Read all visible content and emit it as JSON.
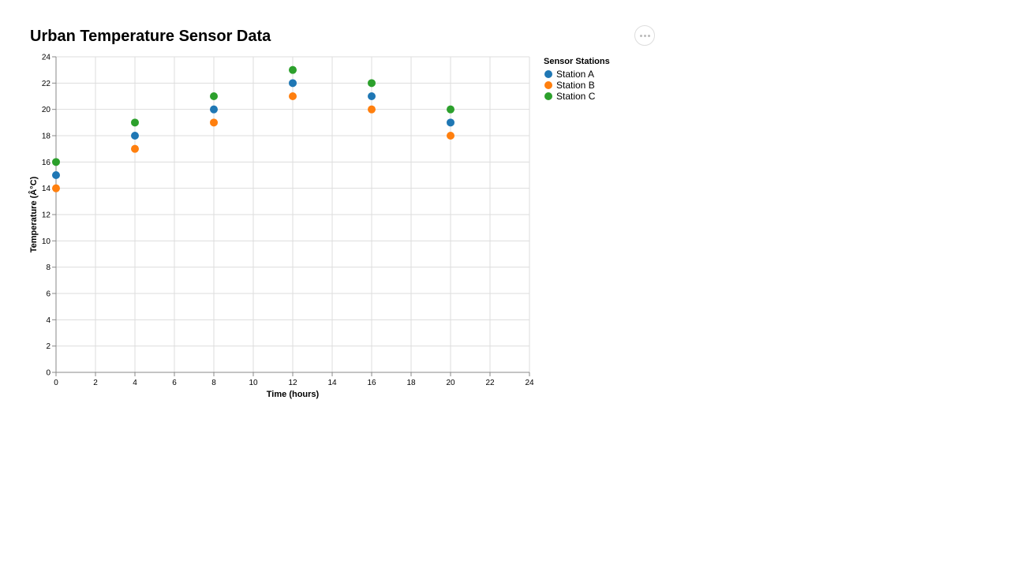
{
  "page": {
    "title": "Urban Temperature Sensor Data"
  },
  "menu": {
    "icon": "more-horizontal-icon"
  },
  "chart_data": {
    "type": "scatter",
    "xlabel": "Time (hours)",
    "ylabel": "Temperature (Â°C)",
    "xlim": [
      0,
      24
    ],
    "ylim": [
      0,
      24
    ],
    "xticks": [
      0,
      2,
      4,
      6,
      8,
      10,
      12,
      14,
      16,
      18,
      20,
      22,
      24
    ],
    "yticks": [
      0,
      2,
      4,
      6,
      8,
      10,
      12,
      14,
      16,
      18,
      20,
      22,
      24
    ],
    "grid": true,
    "legend": {
      "title": "Sensor Stations",
      "position": "right"
    },
    "series": [
      {
        "name": "Station A",
        "color": "#1f77b4",
        "x": [
          0,
          4,
          8,
          12,
          16,
          20
        ],
        "y": [
          15,
          18,
          20,
          22,
          21,
          19
        ]
      },
      {
        "name": "Station B",
        "color": "#ff7f0e",
        "x": [
          0,
          4,
          8,
          12,
          16,
          20
        ],
        "y": [
          14,
          17,
          19,
          21,
          20,
          18
        ]
      },
      {
        "name": "Station C",
        "color": "#2ca02c",
        "x": [
          0,
          4,
          8,
          12,
          16,
          20
        ],
        "y": [
          16,
          19,
          21,
          23,
          22,
          20
        ]
      }
    ]
  }
}
